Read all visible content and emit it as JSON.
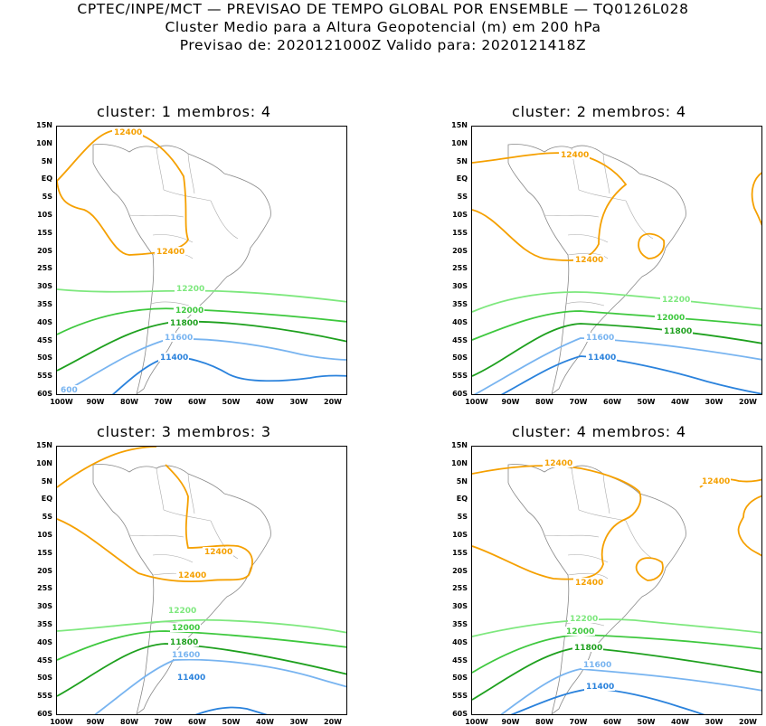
{
  "header": {
    "line1": "CPTEC/INPE/MCT — PREVISAO DE TEMPO GLOBAL POR ENSEMBLE — TQ0126L028",
    "line2": "Cluster Medio para a Altura Geopotencial (m) em 200 hPa",
    "line3": "Previsao de: 2020121000Z    Valido para: 2020121418Z"
  },
  "lat_labels": [
    "15N",
    "10N",
    "5N",
    "EQ",
    "5S",
    "10S",
    "15S",
    "20S",
    "25S",
    "30S",
    "35S",
    "40S",
    "45S",
    "50S",
    "55S",
    "60S"
  ],
  "lon_labels": [
    "100W",
    "90W",
    "80W",
    "70W",
    "60W",
    "50W",
    "40W",
    "30W",
    "20W"
  ],
  "colors": {
    "c12400": "#f5a000",
    "c12200": "#7ee87e",
    "c12000": "#3ec83e",
    "c11800": "#1ea01e",
    "c11600": "#78b4f0",
    "c11400": "#2a82dc",
    "coast": "#888888"
  },
  "panels": [
    {
      "title": "cluster: 1   membros: 4",
      "labels": {
        "c12400a": "12400",
        "c12400b": "12400",
        "c12200": "12200",
        "c12000": "12000",
        "c11800": "11800",
        "c11600": "11600",
        "c11400": "11400",
        "cedge": "600"
      }
    },
    {
      "title": "cluster: 2   membros: 4",
      "labels": {
        "c12400a": "12400",
        "c12400b": "12400",
        "c12200": "12200",
        "c12000": "12000",
        "c11800": "11800",
        "c11600": "11600",
        "c11400": "11400"
      }
    },
    {
      "title": "cluster: 3   membros: 3",
      "labels": {
        "c12400a": "12400",
        "c12400b": "12400",
        "c12200": "12200",
        "c12000": "12000",
        "c11800": "11800",
        "c11600": "11600",
        "c11400": "11400"
      }
    },
    {
      "title": "cluster: 4   membros: 4",
      "labels": {
        "c12400a": "12400",
        "c12400b": "12400",
        "c12400c": "12400",
        "c12200": "12200",
        "c12000": "12000",
        "c11800": "11800",
        "c11600": "11600",
        "c11400": "11400"
      }
    }
  ]
}
